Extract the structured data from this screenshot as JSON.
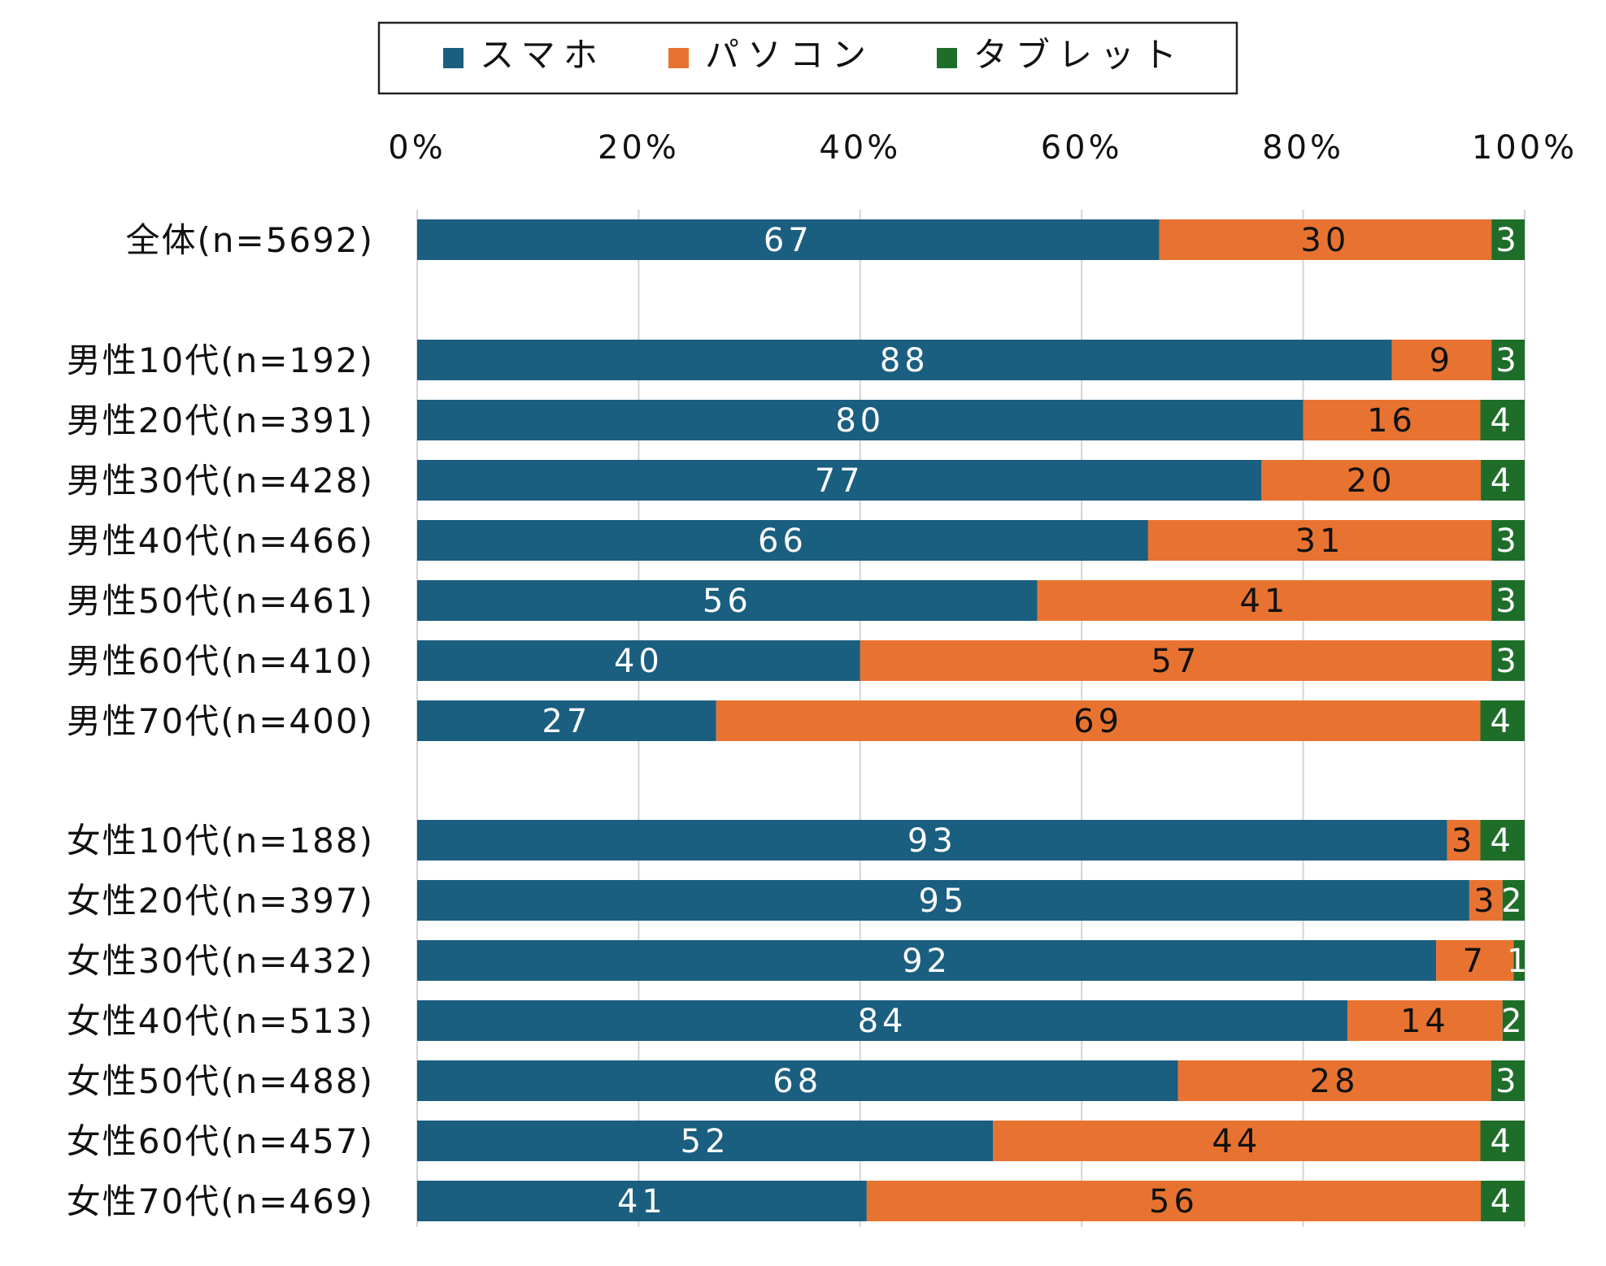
{
  "chart_data": {
    "type": "bar",
    "orientation": "horizontal",
    "stacked": "percent",
    "title": "",
    "xlabel": "",
    "ylabel": "",
    "xlim": [
      0,
      100
    ],
    "x_ticks": [
      "0%",
      "20%",
      "40%",
      "60%",
      "80%",
      "100%"
    ],
    "grid": true,
    "legend_position": "top",
    "categories": [
      "全体(n=5692)",
      "男性10代(n=192)",
      "男性20代(n=391)",
      "男性30代(n=428)",
      "男性40代(n=466)",
      "男性50代(n=461)",
      "男性60代(n=410)",
      "男性70代(n=400)",
      "女性10代(n=188)",
      "女性20代(n=397)",
      "女性30代(n=432)",
      "女性40代(n=513)",
      "女性50代(n=488)",
      "女性60代(n=457)",
      "女性70代(n=469)"
    ],
    "series": [
      {
        "name": "スマホ",
        "color": "#1a5e80",
        "label_color": "#ffffff",
        "values": [
          67,
          88,
          80,
          77,
          66,
          56,
          40,
          27,
          93,
          95,
          92,
          84,
          68,
          52,
          41
        ]
      },
      {
        "name": "パソコン",
        "color": "#e87331",
        "label_color": "#111111",
        "values": [
          30,
          9,
          16,
          20,
          31,
          41,
          57,
          69,
          3,
          3,
          7,
          14,
          28,
          44,
          56
        ]
      },
      {
        "name": "タブレット",
        "color": "#1e6e2a",
        "label_color": "#ffffff",
        "values": [
          3,
          3,
          4,
          4,
          3,
          3,
          3,
          4,
          4,
          2,
          1,
          2,
          3,
          4,
          4
        ]
      }
    ]
  }
}
